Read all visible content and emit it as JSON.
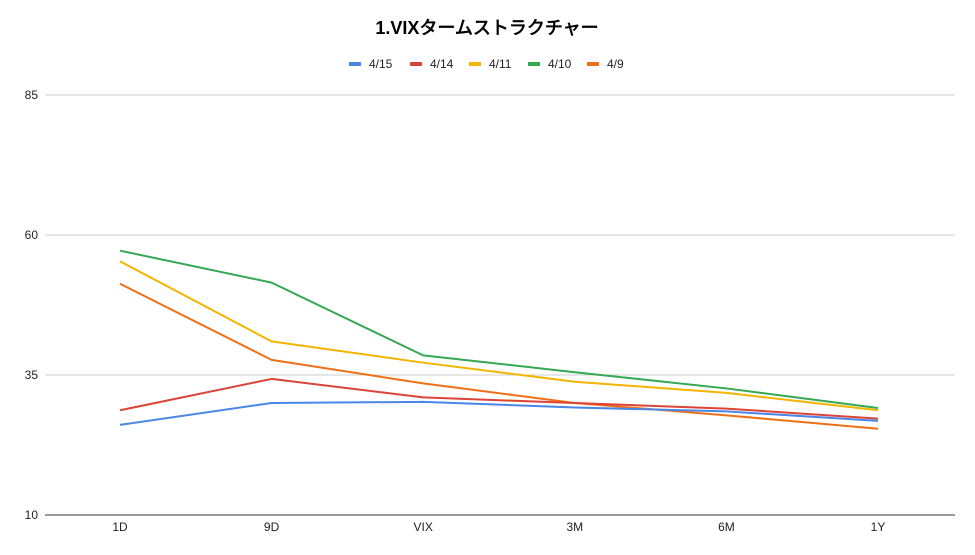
{
  "chart_data": {
    "type": "line",
    "title": "1.VIXタームストラクチャー",
    "xlabel": "",
    "ylabel": "",
    "categories": [
      "1D",
      "9D",
      "VIX",
      "3M",
      "6M",
      "1Y"
    ],
    "ylim": [
      10,
      85
    ],
    "yticks": [
      "85",
      "60",
      "35",
      "10"
    ],
    "grid": true,
    "legend_position": "top",
    "series": [
      {
        "name": "4/15",
        "color": "#4a86e8",
        "values": [
          26.1,
          30.0,
          30.2,
          29.2,
          28.5,
          26.8
        ]
      },
      {
        "name": "4/14",
        "color": "#db4437",
        "values": [
          28.7,
          34.3,
          31.0,
          30.0,
          29.0,
          27.2
        ]
      },
      {
        "name": "4/11",
        "color": "#f4b400",
        "values": [
          55.3,
          41.0,
          37.2,
          33.8,
          31.8,
          28.7
        ]
      },
      {
        "name": "4/10",
        "color": "#34a853",
        "values": [
          57.2,
          51.5,
          38.5,
          35.5,
          32.6,
          29.1
        ]
      },
      {
        "name": "4/9",
        "color": "#f07017",
        "values": [
          51.3,
          37.7,
          33.5,
          30.0,
          27.8,
          25.4
        ]
      }
    ]
  }
}
